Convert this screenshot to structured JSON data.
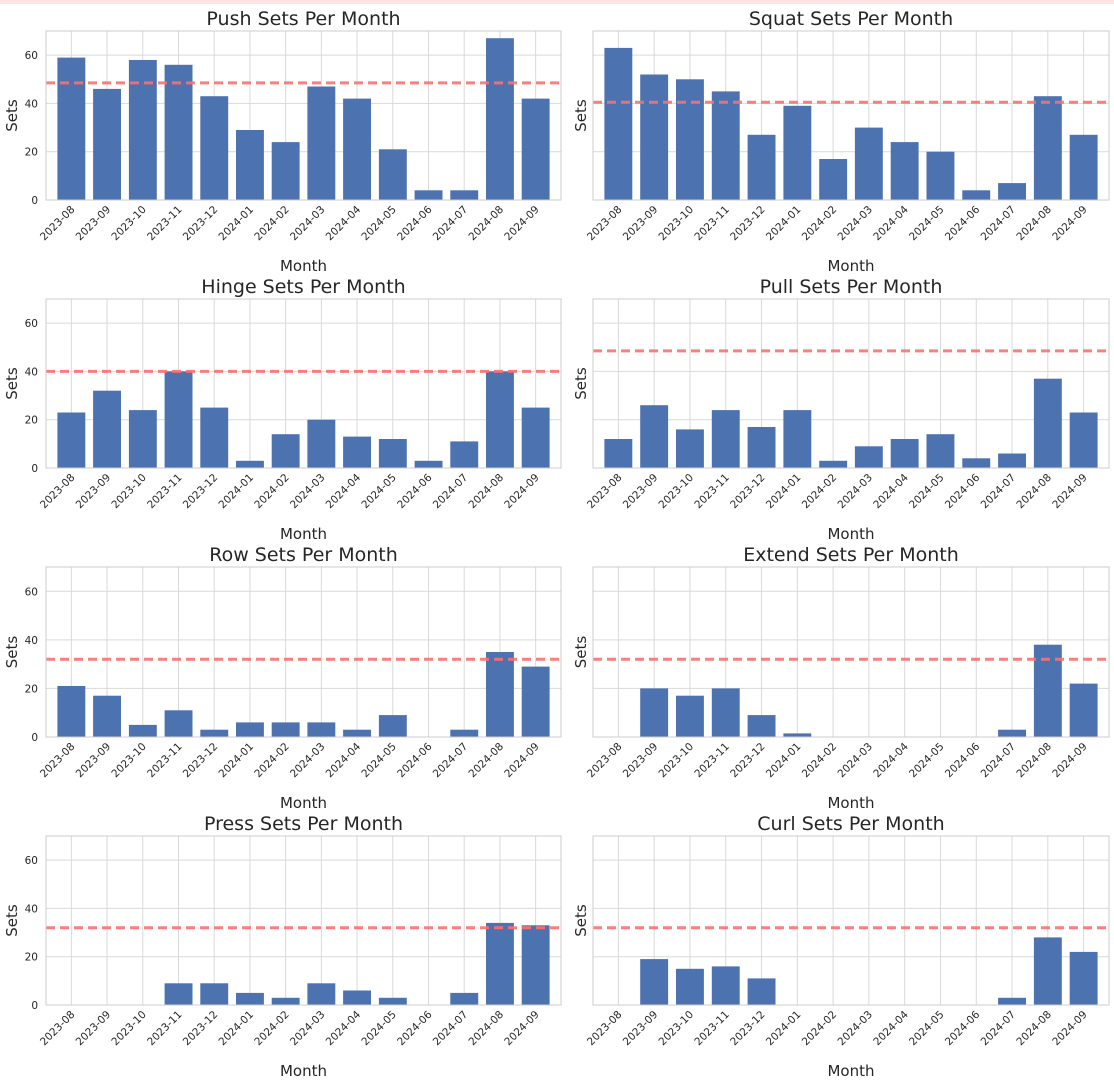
{
  "chart_data": [
    {
      "type": "bar",
      "title": "Push Sets Per Month",
      "xlabel": "Month",
      "ylabel": "Sets",
      "ylim": [
        0,
        70
      ],
      "yticks": [
        0,
        20,
        40,
        60
      ],
      "show_ytick_labels": true,
      "avg_line": 48.5,
      "categories": [
        "2023-08",
        "2023-09",
        "2023-10",
        "2023-11",
        "2023-12",
        "2024-01",
        "2024-02",
        "2024-03",
        "2024-04",
        "2024-05",
        "2024-06",
        "2024-07",
        "2024-08",
        "2024-09"
      ],
      "values": [
        59,
        46,
        58,
        56,
        43,
        29,
        24,
        47,
        42,
        21,
        4,
        4,
        67,
        42
      ]
    },
    {
      "type": "bar",
      "title": "Squat Sets Per Month",
      "xlabel": "Month",
      "ylabel": "Sets",
      "ylim": [
        0,
        70
      ],
      "yticks": [
        0,
        20,
        40,
        60
      ],
      "show_ytick_labels": false,
      "avg_line": 40.5,
      "categories": [
        "2023-08",
        "2023-09",
        "2023-10",
        "2023-11",
        "2023-12",
        "2024-01",
        "2024-02",
        "2024-03",
        "2024-04",
        "2024-05",
        "2024-06",
        "2024-07",
        "2024-08",
        "2024-09"
      ],
      "values": [
        63,
        52,
        50,
        45,
        27,
        39,
        17,
        30,
        24,
        20,
        4,
        7,
        43,
        27
      ]
    },
    {
      "type": "bar",
      "title": "Hinge Sets Per Month",
      "xlabel": "Month",
      "ylabel": "Sets",
      "ylim": [
        0,
        70
      ],
      "yticks": [
        0,
        20,
        40,
        60
      ],
      "show_ytick_labels": true,
      "avg_line": 40,
      "categories": [
        "2023-08",
        "2023-09",
        "2023-10",
        "2023-11",
        "2023-12",
        "2024-01",
        "2024-02",
        "2024-03",
        "2024-04",
        "2024-05",
        "2024-06",
        "2024-07",
        "2024-08",
        "2024-09"
      ],
      "values": [
        23,
        32,
        24,
        40,
        25,
        3,
        14,
        20,
        13,
        12,
        3,
        11,
        40,
        25
      ]
    },
    {
      "type": "bar",
      "title": "Pull Sets Per Month",
      "xlabel": "Month",
      "ylabel": "Sets",
      "ylim": [
        0,
        70
      ],
      "yticks": [
        0,
        20,
        40,
        60
      ],
      "show_ytick_labels": false,
      "avg_line": 48.5,
      "categories": [
        "2023-08",
        "2023-09",
        "2023-10",
        "2023-11",
        "2023-12",
        "2024-01",
        "2024-02",
        "2024-03",
        "2024-04",
        "2024-05",
        "2024-06",
        "2024-07",
        "2024-08",
        "2024-09"
      ],
      "values": [
        12,
        26,
        16,
        24,
        17,
        24,
        3,
        9,
        12,
        14,
        4,
        6,
        37,
        23
      ]
    },
    {
      "type": "bar",
      "title": "Row Sets Per Month",
      "xlabel": "Month",
      "ylabel": "Sets",
      "ylim": [
        0,
        70
      ],
      "yticks": [
        0,
        20,
        40,
        60
      ],
      "show_ytick_labels": true,
      "avg_line": 32,
      "categories": [
        "2023-08",
        "2023-09",
        "2023-10",
        "2023-11",
        "2023-12",
        "2024-01",
        "2024-02",
        "2024-03",
        "2024-04",
        "2024-05",
        "2024-06",
        "2024-07",
        "2024-08",
        "2024-09"
      ],
      "values": [
        21,
        17,
        5,
        11,
        3,
        6,
        6,
        6,
        3,
        9,
        0,
        3,
        35,
        29
      ]
    },
    {
      "type": "bar",
      "title": "Extend Sets Per Month",
      "xlabel": "Month",
      "ylabel": "Sets",
      "ylim": [
        0,
        70
      ],
      "yticks": [
        0,
        20,
        40,
        60
      ],
      "show_ytick_labels": false,
      "avg_line": 32,
      "categories": [
        "2023-08",
        "2023-09",
        "2023-10",
        "2023-11",
        "2023-12",
        "2024-01",
        "2024-02",
        "2024-03",
        "2024-04",
        "2024-05",
        "2024-06",
        "2024-07",
        "2024-08",
        "2024-09"
      ],
      "values": [
        0,
        20,
        17,
        20,
        9,
        1.5,
        0,
        0,
        0,
        0,
        0,
        3,
        38,
        22
      ]
    },
    {
      "type": "bar",
      "title": "Press Sets Per Month",
      "xlabel": "Month",
      "ylabel": "Sets",
      "ylim": [
        0,
        70
      ],
      "yticks": [
        0,
        20,
        40,
        60
      ],
      "show_ytick_labels": true,
      "avg_line": 32,
      "categories": [
        "2023-08",
        "2023-09",
        "2023-10",
        "2023-11",
        "2023-12",
        "2024-01",
        "2024-02",
        "2024-03",
        "2024-04",
        "2024-05",
        "2024-06",
        "2024-07",
        "2024-08",
        "2024-09"
      ],
      "values": [
        0,
        0,
        0,
        9,
        9,
        5,
        3,
        9,
        6,
        3,
        0,
        5,
        34,
        33
      ]
    },
    {
      "type": "bar",
      "title": "Curl Sets Per Month",
      "xlabel": "Month",
      "ylabel": "Sets",
      "ylim": [
        0,
        70
      ],
      "yticks": [
        0,
        20,
        40,
        60
      ],
      "show_ytick_labels": false,
      "avg_line": 32,
      "categories": [
        "2023-08",
        "2023-09",
        "2023-10",
        "2023-11",
        "2023-12",
        "2024-01",
        "2024-02",
        "2024-03",
        "2024-04",
        "2024-05",
        "2024-06",
        "2024-07",
        "2024-08",
        "2024-09"
      ],
      "values": [
        0,
        19,
        15,
        16,
        11,
        0,
        0,
        0,
        0,
        0,
        0,
        3,
        28,
        22
      ]
    }
  ],
  "colors": {
    "bar": "#4c72b0",
    "avg_line": "#ff6f6f",
    "grid": "#d9d9d9",
    "frame": "#cccccc",
    "text": "#262626"
  }
}
